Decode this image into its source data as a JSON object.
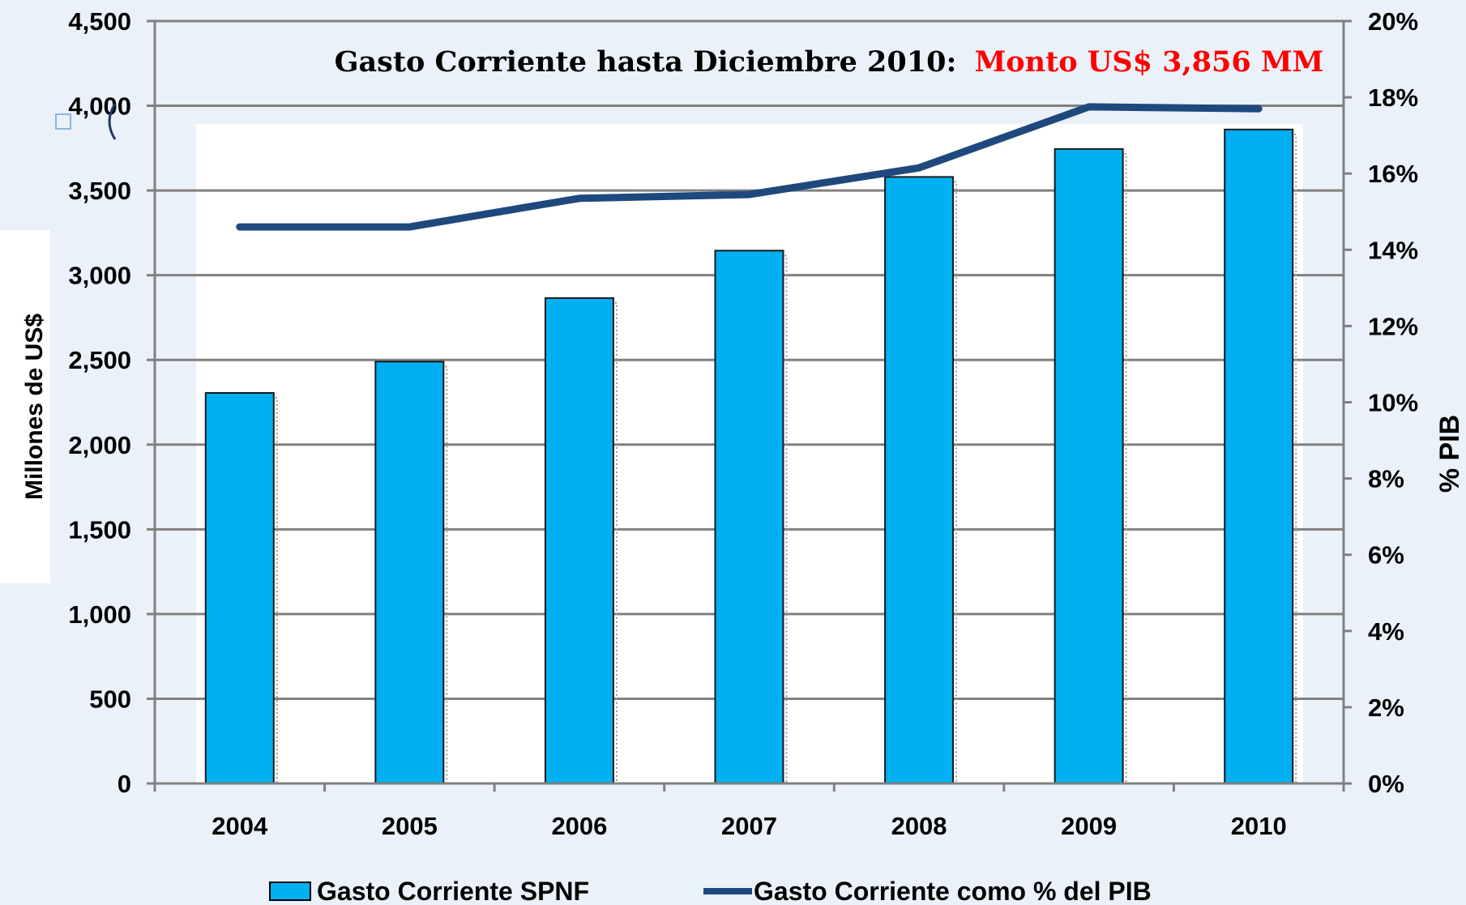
{
  "chart_data": {
    "type": "bar",
    "title": "Gasto Corriente hasta Diciembre 2010:",
    "title_highlight": "Monto US$ 3,856 MM",
    "categories": [
      "2004",
      "2005",
      "2006",
      "2007",
      "2008",
      "2009",
      "2010"
    ],
    "series": [
      {
        "name": "Gasto Corriente SPNF",
        "type": "bar",
        "axis": "left",
        "color": "#00b0f0",
        "values": [
          2305,
          2490,
          2865,
          3145,
          3580,
          3745,
          3860
        ]
      },
      {
        "name": "Gasto Corriente como % del PIB",
        "type": "line",
        "axis": "right",
        "color": "#1f497d",
        "values": [
          14.6,
          14.6,
          15.35,
          15.45,
          16.15,
          17.75,
          17.7
        ]
      }
    ],
    "ylabel": "Millones de US$",
    "y2label": "% PIB",
    "ylim": [
      0,
      4500
    ],
    "y2lim": [
      0,
      20
    ],
    "yticks": [
      "0",
      "500",
      "1,000",
      "1,500",
      "2,000",
      "2,500",
      "3,000",
      "3,500",
      "4,000",
      "4,500"
    ],
    "y2ticks": [
      "0%",
      "2%",
      "4%",
      "6%",
      "8%",
      "10%",
      "12%",
      "14%",
      "16%",
      "18%",
      "20%"
    ],
    "grid": true,
    "legend_position": "bottom",
    "title_color": "#000000",
    "highlight_color": "#ff0000"
  }
}
